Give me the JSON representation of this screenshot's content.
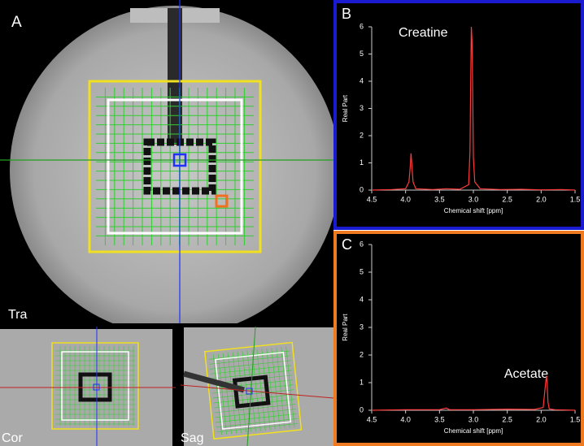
{
  "image_panel": {
    "panel": "A",
    "views": [
      "Tra",
      "Cor",
      "Sag"
    ]
  },
  "chart_data": [
    {
      "type": "line",
      "panel": "B",
      "annotation": "Creatine",
      "border_color": "#1a1ad0",
      "color": "#ff3a3a",
      "xlabel": "Chemical shift [ppm]",
      "ylabel": "Real Part",
      "x": [
        4.5,
        4.2,
        4.0,
        3.95,
        3.93,
        3.92,
        3.91,
        3.89,
        3.85,
        3.6,
        3.4,
        3.2,
        3.07,
        3.05,
        3.04,
        3.03,
        3.02,
        3.01,
        3.0,
        2.98,
        2.9,
        2.6,
        2.3,
        2.0,
        1.7,
        1.5
      ],
      "values": [
        0,
        0.02,
        0.05,
        0.3,
        0.9,
        1.35,
        1.0,
        0.3,
        0.05,
        0.02,
        0.05,
        0.03,
        0.2,
        1.4,
        4.0,
        6.0,
        5.5,
        3.5,
        1.2,
        0.3,
        0.05,
        0.02,
        0.03,
        0.01,
        0.02,
        0
      ],
      "xlim": [
        4.5,
        1.5
      ],
      "ylim": [
        0,
        6
      ],
      "xticks": [
        4.5,
        {
          "value": 4,
          "label": "4.0"
        },
        3.5,
        {
          "value": 3,
          "label": "3.0"
        },
        2.5,
        {
          "value": 2,
          "label": "2.0"
        },
        1.5
      ],
      "yticks": [
        0,
        1,
        2,
        3,
        4,
        5,
        6
      ]
    },
    {
      "type": "line",
      "panel": "C",
      "annotation": "Acetate",
      "border_color": "#f07a20",
      "color": "#ff3a3a",
      "xlabel": "Chemical shift [ppm]",
      "ylabel": "Real Part",
      "x": [
        4.5,
        4.0,
        3.5,
        3.4,
        3.35,
        3.0,
        2.5,
        2.1,
        1.97,
        1.95,
        1.93,
        1.92,
        1.91,
        1.9,
        1.88,
        1.8,
        1.5
      ],
      "values": [
        0,
        0.02,
        0.02,
        0.08,
        0.02,
        0.02,
        0.04,
        0.03,
        0.1,
        0.6,
        1.1,
        1.25,
        0.9,
        0.3,
        0.05,
        0.02,
        0
      ],
      "xlim": [
        4.5,
        1.5
      ],
      "ylim": [
        0,
        6
      ],
      "xticks": [
        4.5,
        {
          "value": 4,
          "label": "4.0"
        },
        3.5,
        {
          "value": 3,
          "label": "3.0"
        },
        2.5,
        {
          "value": 2,
          "label": "2.0"
        },
        1.5
      ],
      "yticks": [
        0,
        1,
        2,
        3,
        4,
        5,
        6
      ]
    }
  ]
}
